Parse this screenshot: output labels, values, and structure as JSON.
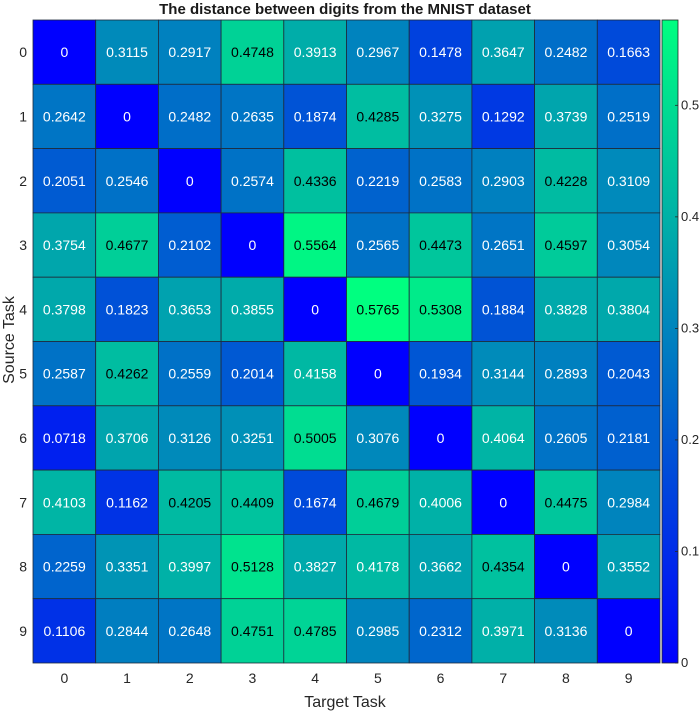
{
  "chart_data": {
    "type": "heatmap",
    "title": "The distance between digits from the MNIST dataset",
    "xlabel": "Target Task",
    "ylabel": "Source Task",
    "x_categories": [
      "0",
      "1",
      "2",
      "3",
      "4",
      "5",
      "6",
      "7",
      "8",
      "9"
    ],
    "y_categories": [
      "0",
      "1",
      "2",
      "3",
      "4",
      "5",
      "6",
      "7",
      "8",
      "9"
    ],
    "values": [
      [
        "0",
        "0.3115",
        "0.2917",
        "0.4748",
        "0.3913",
        "0.2967",
        "0.1478",
        "0.3647",
        "0.2482",
        "0.1663"
      ],
      [
        "0.2642",
        "0",
        "0.2482",
        "0.2635",
        "0.1874",
        "0.4285",
        "0.3275",
        "0.1292",
        "0.3739",
        "0.2519"
      ],
      [
        "0.2051",
        "0.2546",
        "0",
        "0.2574",
        "0.4336",
        "0.2219",
        "0.2583",
        "0.2903",
        "0.4228",
        "0.3109"
      ],
      [
        "0.3754",
        "0.4677",
        "0.2102",
        "0",
        "0.5564",
        "0.2565",
        "0.4473",
        "0.2651",
        "0.4597",
        "0.3054"
      ],
      [
        "0.3798",
        "0.1823",
        "0.3653",
        "0.3855",
        "0",
        "0.5765",
        "0.5308",
        "0.1884",
        "0.3828",
        "0.3804"
      ],
      [
        "0.2587",
        "0.4262",
        "0.2559",
        "0.2014",
        "0.4158",
        "0",
        "0.1934",
        "0.3144",
        "0.2893",
        "0.2043"
      ],
      [
        "0.0718",
        "0.3706",
        "0.3126",
        "0.3251",
        "0.5005",
        "0.3076",
        "0",
        "0.4064",
        "0.2605",
        "0.2181"
      ],
      [
        "0.4103",
        "0.1162",
        "0.4205",
        "0.4409",
        "0.1674",
        "0.4679",
        "0.4006",
        "0",
        "0.4475",
        "0.2984"
      ],
      [
        "0.2259",
        "0.3351",
        "0.3997",
        "0.5128",
        "0.3827",
        "0.4178",
        "0.3662",
        "0.4354",
        "0",
        "0.3552"
      ],
      [
        "0.1106",
        "0.2844",
        "0.2648",
        "0.4751",
        "0.4785",
        "0.2985",
        "0.2312",
        "0.3971",
        "0.3136",
        "0"
      ]
    ],
    "colormap": "winter",
    "color_range": [
      0,
      0.5765
    ],
    "colorbar_ticks": [
      "0",
      "0.1",
      "0.2",
      "0.3",
      "0.4",
      "0.5"
    ],
    "colors": {
      "low": "#0000ff",
      "high": "#00ff80",
      "grid": "#1e2a3a"
    },
    "label_dark_threshold": 0.42,
    "grid": true
  }
}
